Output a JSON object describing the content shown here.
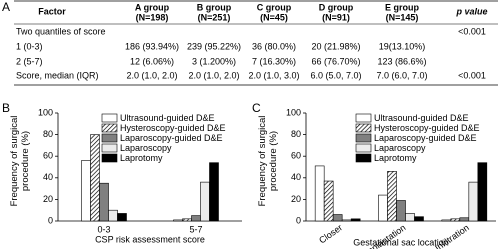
{
  "table": {
    "label": "A",
    "columns": [
      {
        "name": "Factor"
      },
      {
        "name": "A group",
        "n": "(N=198)"
      },
      {
        "name": "B group",
        "n": "(N=251)"
      },
      {
        "name": "C group",
        "n": "(N=45)"
      },
      {
        "name": "D group",
        "n": "(N=91)"
      },
      {
        "name": "E group",
        "n": "(N=145)"
      },
      {
        "name": "p value"
      }
    ],
    "rows": [
      {
        "factor": "Two quantiles of score",
        "p": "<0.001"
      },
      {
        "factor": "1 (0-3)",
        "cells": [
          "186 (93.94%)",
          "239 (95.22%)",
          "36 (80.0%)",
          "20 (21.98%)",
          "19(13.10%)"
        ]
      },
      {
        "factor": "2 (5-7)",
        "cells": [
          "12 (6.06%)",
          "3 (1.200%)",
          "7 (16.30%)",
          "66 (76.70%)",
          "123 (86.6%)"
        ]
      },
      {
        "factor": "Score, median (IQR)",
        "cells": [
          "2.0 (1.0, 2.0)",
          "2.0 (1.0, 2.0)",
          "2.0 (1.0, 3.0)",
          "6.0 (5.0, 7.0)",
          "7.0 (6.0, 7.0)"
        ],
        "p": "<0.001"
      }
    ]
  },
  "chart_data": [
    {
      "type": "bar",
      "panel_label": "B",
      "x_label": "CSP risk assessment score",
      "y_label": "Frequency of surgical procedure (%)",
      "categories": [
        "0-3",
        "5-7"
      ],
      "ylim": [
        0,
        100
      ],
      "yticks": [
        0,
        20,
        40,
        60,
        80,
        100
      ],
      "legend": "upper right",
      "rotate_x_labels": false,
      "series": [
        {
          "name": "Ultrasound-guided D&E",
          "color": "#ffffff",
          "values": [
            56,
            1
          ]
        },
        {
          "name": "Hysteroscopy-guided D&E",
          "color": "#ffffff",
          "hatch": true,
          "values": [
            80,
            2
          ]
        },
        {
          "name": "Laparoscopy-guided D&E",
          "color": "#808080",
          "values": [
            35,
            5
          ]
        },
        {
          "name": "Laparoscopy",
          "color": "#ececec",
          "values": [
            10,
            36
          ]
        },
        {
          "name": "Laprotomy",
          "color": "#000000",
          "values": [
            7,
            54
          ]
        }
      ]
    },
    {
      "type": "bar",
      "panel_label": "C",
      "x_label": "Gestational sac location",
      "y_label": "Frequency of surgical procedure (%)",
      "categories": [
        "Closer",
        "Implantation",
        "Infiltration"
      ],
      "ylim": [
        0,
        100
      ],
      "yticks": [
        0,
        20,
        40,
        60,
        80,
        100
      ],
      "legend": "upper right",
      "rotate_x_labels": true,
      "series": [
        {
          "name": "Ultrasound-guided D&E",
          "color": "#ffffff",
          "values": [
            51,
            24,
            1
          ]
        },
        {
          "name": "Hysteroscopy-guided D&E",
          "color": "#ffffff",
          "hatch": true,
          "values": [
            37,
            46,
            2
          ]
        },
        {
          "name": "Laparoscopy-guided D&E",
          "color": "#808080",
          "values": [
            6,
            19,
            3
          ]
        },
        {
          "name": "Laparoscopy",
          "color": "#ececec",
          "values": [
            1,
            7,
            36
          ]
        },
        {
          "name": "Laprotomy",
          "color": "#000000",
          "values": [
            2,
            4,
            54
          ]
        }
      ]
    }
  ]
}
